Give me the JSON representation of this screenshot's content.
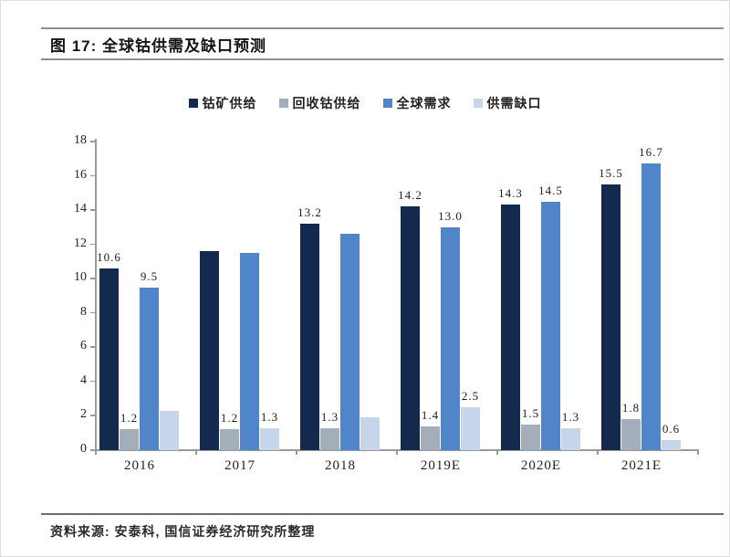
{
  "header": {
    "title": "图 17: 全球钴供需及缺口预测"
  },
  "source": {
    "text": "资料来源: 安泰科, 国信证券经济研究所整理"
  },
  "colors": {
    "ore_supply": "#13294e",
    "recycled_supply": "#a4adba",
    "global_demand": "#5185c9",
    "gap": "#c6d5ea",
    "axis": "#9a9a9a"
  },
  "chart_data": {
    "type": "bar",
    "title": "图 17: 全球钴供需及缺口预测",
    "categories": [
      "2016",
      "2017",
      "2018",
      "2019E",
      "2020E",
      "2021E"
    ],
    "series": [
      {
        "name": "钴矿供给",
        "color": "#13294e",
        "values": [
          10.6,
          11.6,
          13.2,
          14.2,
          14.3,
          15.5
        ],
        "labels": [
          "10.6",
          null,
          "13.2",
          "14.2",
          "14.3",
          "15.5"
        ]
      },
      {
        "name": "回收钴供给",
        "color": "#a4adba",
        "values": [
          1.2,
          1.2,
          1.3,
          1.4,
          1.5,
          1.8
        ],
        "labels": [
          "1.2",
          "1.2",
          "1.3",
          "1.4",
          "1.5",
          "1.8"
        ]
      },
      {
        "name": "全球需求",
        "color": "#5185c9",
        "values": [
          9.5,
          11.5,
          12.6,
          13.0,
          14.5,
          16.7
        ],
        "labels": [
          "9.5",
          null,
          null,
          "13.0",
          "14.5",
          "16.7"
        ]
      },
      {
        "name": "供需缺口",
        "color": "#c6d5ea",
        "values": [
          2.3,
          1.3,
          1.9,
          2.5,
          1.3,
          0.6
        ],
        "labels": [
          null,
          "1.3",
          null,
          "2.5",
          "1.3",
          "0.6"
        ]
      }
    ],
    "xlabel": "",
    "ylabel": "",
    "ylim": [
      0,
      18
    ],
    "ytick_step": 2,
    "grid": false,
    "legend_position": "top-center"
  }
}
